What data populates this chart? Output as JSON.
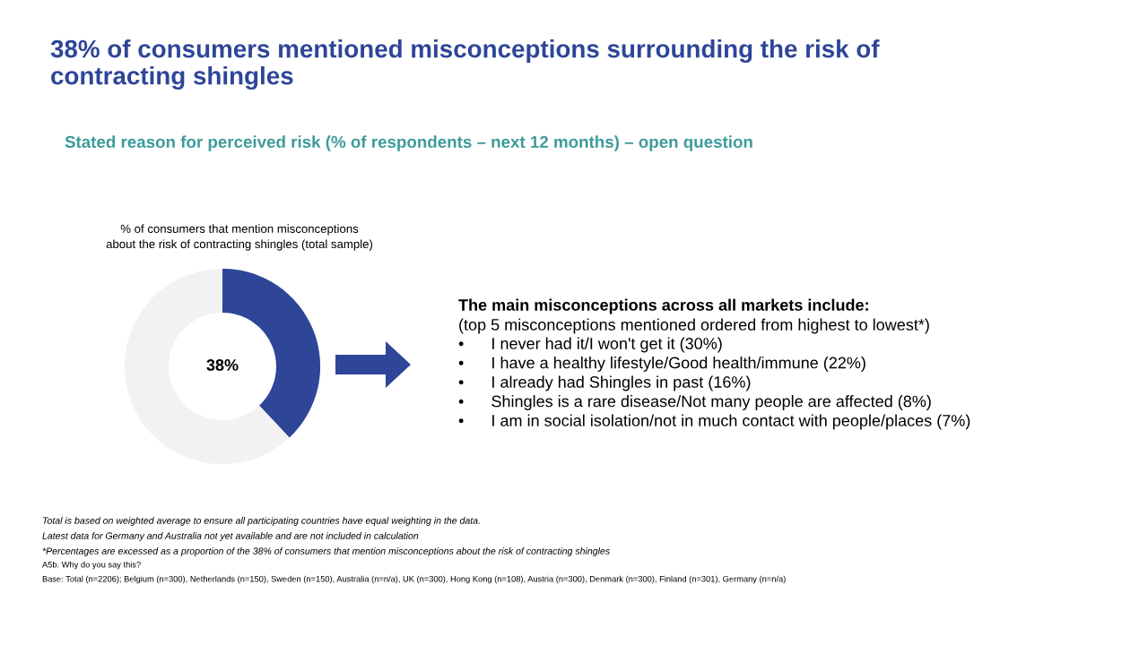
{
  "chart_data": {
    "type": "donut",
    "title": "38% of consumers mentioned misconceptions surrounding the risk of\ncontracting shingles",
    "subtitle": "Stated reason for perceived risk (% of respondents – next 12 months) – open question",
    "categories": [
      null,
      null
    ],
    "values": [
      38,
      62
    ],
    "colors": [
      "#2e4598",
      "#f2f2f2"
    ],
    "value_labels": [
      "38%",
      null
    ],
    "annotations": [
      "% of consumers that mention misconceptions\nabout the risk of contracting shingles (total sample)",
      "The main misconceptions across all markets include:",
      "(top 5 misconceptions mentioned ordered from highest to lowest*)",
      "•      I never had it/I won't get it (30%)",
      "•      I have a healthy lifestyle/Good health/immune (22%)",
      "•      I already had Shingles in past (16%)",
      "•      Shingles is a rare disease/Not many people are affected (8%)",
      "•      I am in social isolation/not in much contact with people/places (7%)",
      "Total is based on weighted average to ensure all participating countries have equal weighting in the data.",
      "Latest data for Germany and Australia not yet available and are not included in calculation",
      "*Percentages are excessed as a proportion of the 38% of consumers that mention misconceptions about the risk of contracting shingles",
      "A5b. Why do you say this?",
      "Base: Total (n=2206); Belgium (n=300), Netherlands (n=150), Sweden (n=150), Australia (n=n/a), UK (n=300), Hong Kong (n=108), Austria (n=300), Denmark (n=300), Finland (n=301), Germany (n=n/a)"
    ]
  }
}
